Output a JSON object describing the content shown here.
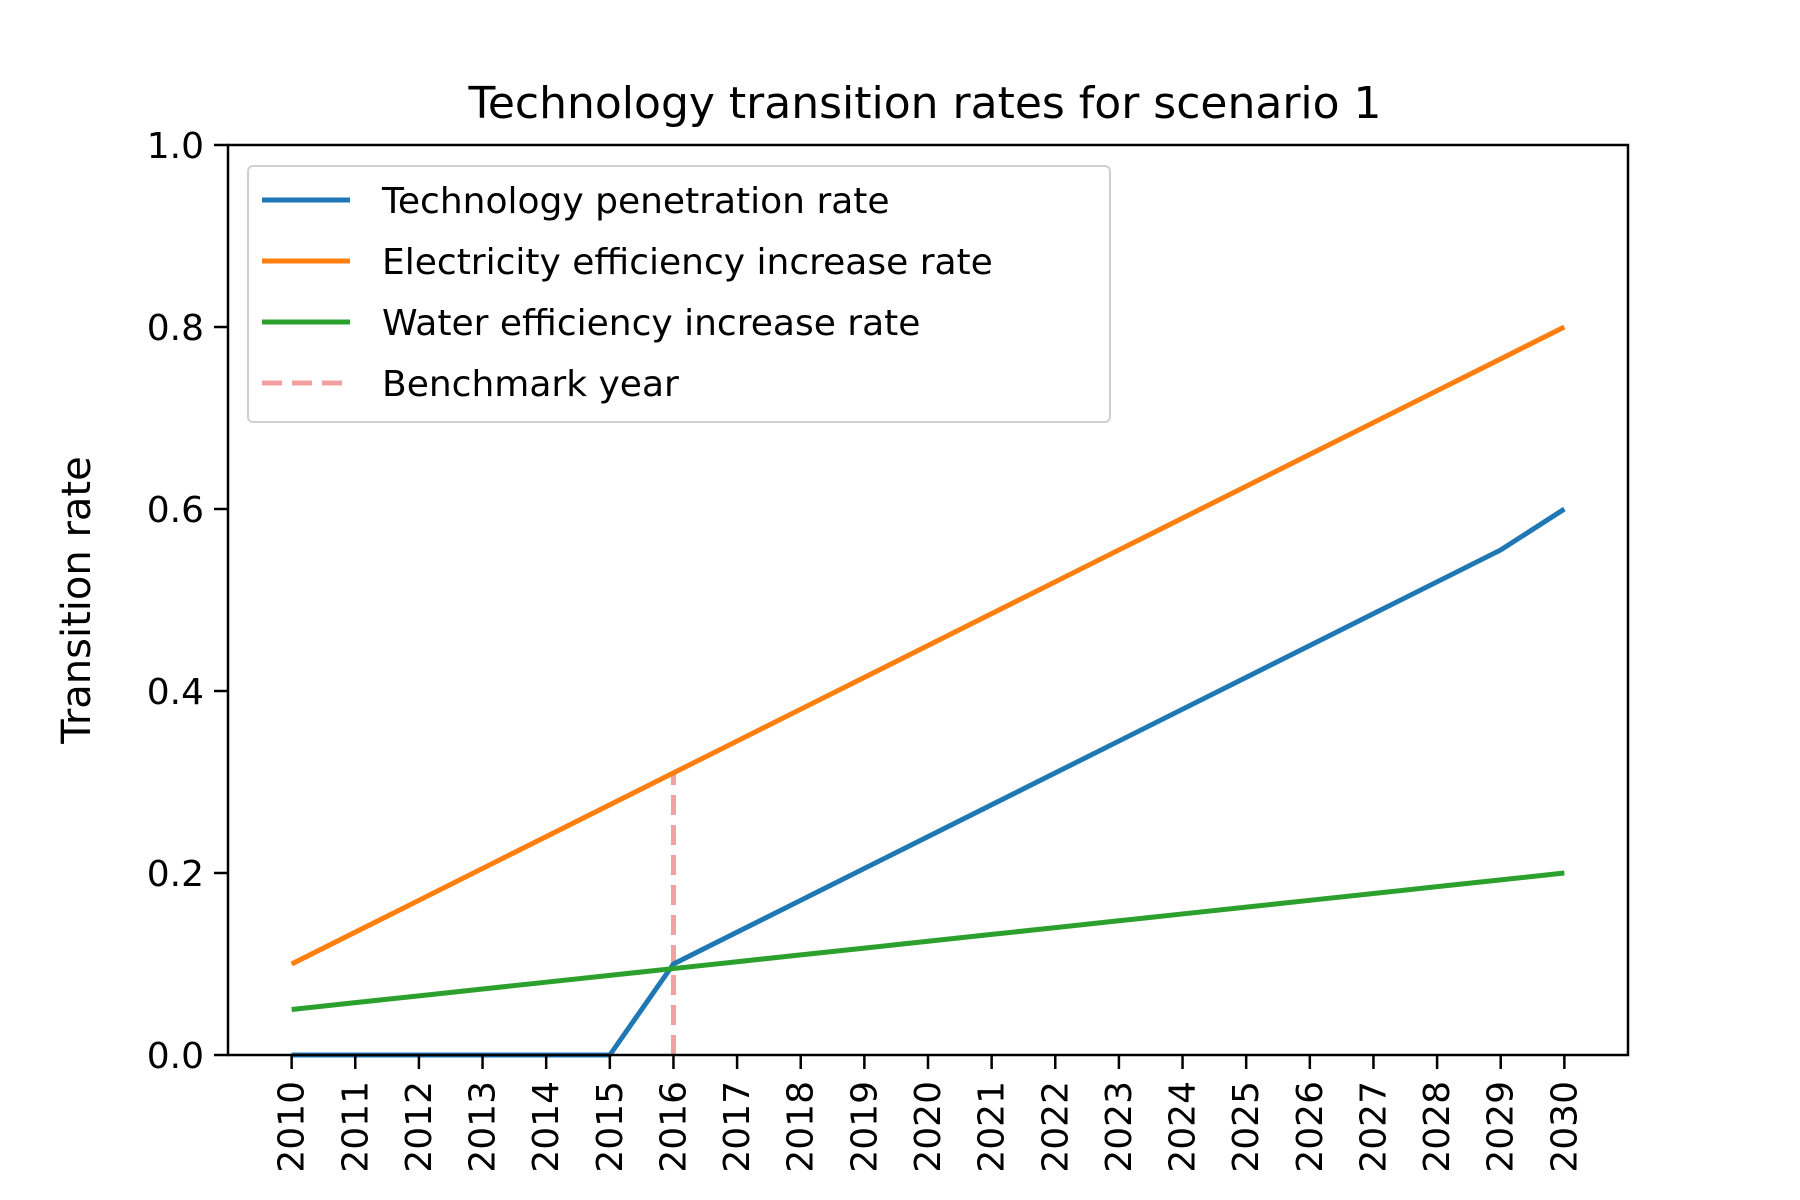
{
  "chart_data": {
    "type": "line",
    "title": "Technology transition rates for scenario 1",
    "xlabel": "",
    "ylabel": "Transition rate",
    "x": [
      2010,
      2011,
      2012,
      2013,
      2014,
      2015,
      2016,
      2017,
      2018,
      2019,
      2020,
      2021,
      2022,
      2023,
      2024,
      2025,
      2026,
      2027,
      2028,
      2029,
      2030
    ],
    "xlim": [
      2009,
      2031
    ],
    "ylim": [
      0,
      1.0
    ],
    "yticks": [
      0.0,
      0.2,
      0.4,
      0.6,
      0.8,
      1.0
    ],
    "ytick_labels": [
      "0.0",
      "0.2",
      "0.4",
      "0.6",
      "0.8",
      "1.0"
    ],
    "grid": false,
    "legend_position": "top-left",
    "series": [
      {
        "name": "Technology penetration rate",
        "color": "#1f77b4",
        "style": "solid",
        "values": [
          0,
          0,
          0,
          0,
          0,
          0,
          0.1,
          0.135,
          0.17,
          0.205,
          0.24,
          0.275,
          0.31,
          0.345,
          0.38,
          0.415,
          0.45,
          0.485,
          0.52,
          0.555,
          0.6
        ]
      },
      {
        "name": "Electricity efficiency increase rate",
        "color": "#ff7f0e",
        "style": "solid",
        "values": [
          0.1,
          0.135,
          0.17,
          0.205,
          0.24,
          0.275,
          0.31,
          0.345,
          0.38,
          0.415,
          0.45,
          0.485,
          0.52,
          0.555,
          0.59,
          0.625,
          0.66,
          0.695,
          0.73,
          0.765,
          0.8
        ]
      },
      {
        "name": "Water efficiency increase rate",
        "color": "#2ca02c",
        "style": "solid",
        "values": [
          0.05,
          0.0575,
          0.065,
          0.0725,
          0.08,
          0.0875,
          0.095,
          0.1025,
          0.11,
          0.1175,
          0.125,
          0.1325,
          0.14,
          0.1475,
          0.155,
          0.1625,
          0.17,
          0.1775,
          0.185,
          0.1925,
          0.2
        ]
      }
    ],
    "benchmark": {
      "name": "Benchmark year",
      "x": 2016,
      "y_top": 0.31,
      "color": "#f4a0a0",
      "style": "dashed"
    }
  }
}
